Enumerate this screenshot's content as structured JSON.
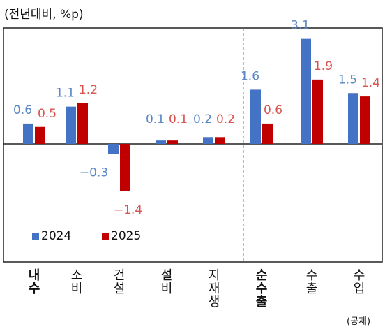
{
  "chart_data": {
    "type": "bar",
    "unit_label": "(전년대비, %p)",
    "categories": [
      "내수",
      "소비",
      "건설",
      "설비",
      "지재생",
      "순수출",
      "수출",
      "수입"
    ],
    "bold_categories": [
      "내수",
      "순수출"
    ],
    "series": [
      {
        "name": "2024",
        "color": "#4472c4",
        "label_color": "#5b87c6",
        "values": [
          0.6,
          1.1,
          -0.3,
          0.1,
          0.2,
          1.6,
          3.1,
          1.5
        ]
      },
      {
        "name": "2025",
        "color": "#c00000",
        "label_color": "#d9534f",
        "values": [
          0.5,
          1.2,
          -1.4,
          0.1,
          0.2,
          0.6,
          1.9,
          1.4
        ]
      }
    ],
    "value_labels": [
      [
        "0.6",
        "1.1",
        "−0.3",
        "0.1",
        "0.2",
        "1.6",
        "3.1",
        "1.5"
      ],
      [
        "0.5",
        "1.2",
        "−1.4",
        "0.1",
        "0.2",
        "0.6",
        "1.9",
        "1.4"
      ]
    ],
    "ylim": [
      -3.7,
      3.5
    ],
    "legend_position": "bottom-left",
    "divider_after_category": "지재생",
    "footnote": "(공제)"
  }
}
